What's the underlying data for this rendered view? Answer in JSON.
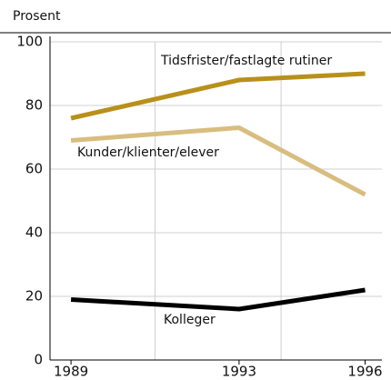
{
  "chart_data": {
    "type": "line",
    "y_label": "Prosent",
    "x": [
      1989,
      1993,
      1996
    ],
    "xlim": [
      1988.5,
      1996.4
    ],
    "xticks": [
      1989,
      1993,
      1996
    ],
    "xgrid": [
      1991,
      1994
    ],
    "ylim": [
      0,
      100
    ],
    "yticks": [
      0,
      20,
      40,
      60,
      80,
      100
    ],
    "grid": true,
    "series": [
      {
        "name": "Tidsfrister/fastlagte rutiner",
        "color": "#b8901a",
        "values": [
          76,
          88,
          90
        ]
      },
      {
        "name": "Kunder/klienter/elever",
        "color": "#d9bd80",
        "values": [
          69,
          73,
          52
        ]
      },
      {
        "name": "Kolleger",
        "color": "#000000",
        "values": [
          19,
          16,
          22
        ]
      }
    ]
  }
}
